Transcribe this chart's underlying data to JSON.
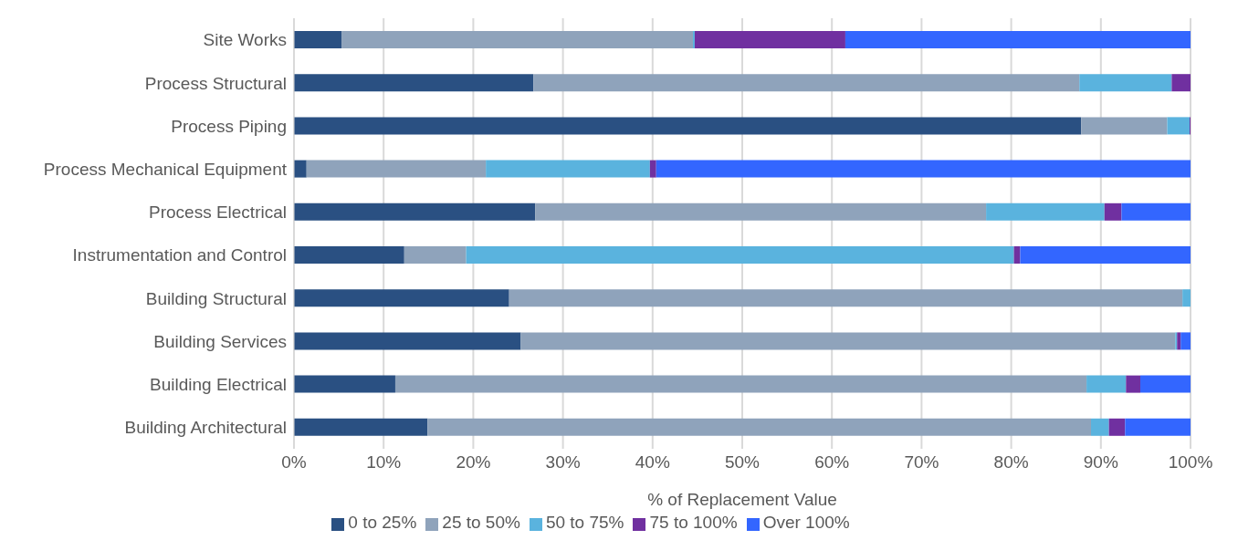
{
  "chart_data": {
    "type": "bar",
    "orientation": "horizontal",
    "stacked": true,
    "categories": [
      "Site Works",
      "Process Structural",
      "Process Piping",
      "Process Mechanical Equipment",
      "Process Electrical",
      "Instrumentation and Control",
      "Building Structural",
      "Building Services",
      "Building Electrical",
      "Building Architectural"
    ],
    "series": [
      {
        "name": "0 to 25%",
        "color": "#2a5082",
        "values": [
          5.3,
          26.7,
          87.8,
          1.4,
          26.9,
          12.3,
          24.0,
          25.3,
          11.3,
          14.9
        ]
      },
      {
        "name": "25 to 50%",
        "color": "#8fa3bb",
        "values": [
          39.2,
          60.9,
          9.6,
          20.0,
          50.3,
          6.9,
          75.1,
          73.0,
          77.1,
          74.0
        ]
      },
      {
        "name": "50 to 75%",
        "color": "#5ab3de",
        "values": [
          0.2,
          10.3,
          2.5,
          18.3,
          13.2,
          61.1,
          0.9,
          0.2,
          4.4,
          2.0
        ]
      },
      {
        "name": "75 to 100%",
        "color": "#7030a0",
        "values": [
          16.8,
          2.1,
          0.1,
          0.7,
          1.9,
          0.7,
          0,
          0.4,
          1.6,
          1.8
        ]
      },
      {
        "name": "Over 100%",
        "color": "#3366ff",
        "values": [
          38.5,
          0,
          0,
          59.6,
          7.7,
          19.0,
          0,
          1.1,
          5.6,
          7.3
        ]
      }
    ],
    "xlabel": "% of Replacement Value",
    "xlim": [
      0,
      100
    ],
    "xticks": [
      {
        "value": 0,
        "label": "0%"
      },
      {
        "value": 10,
        "label": "10%"
      },
      {
        "value": 20,
        "label": "20%"
      },
      {
        "value": 30,
        "label": "30%"
      },
      {
        "value": 40,
        "label": "40%"
      },
      {
        "value": 50,
        "label": "50%"
      },
      {
        "value": 60,
        "label": "60%"
      },
      {
        "value": 70,
        "label": "70%"
      },
      {
        "value": 80,
        "label": "80%"
      },
      {
        "value": 90,
        "label": "90%"
      },
      {
        "value": 100,
        "label": "100%"
      }
    ],
    "grid": "x",
    "legend": "bottom"
  }
}
